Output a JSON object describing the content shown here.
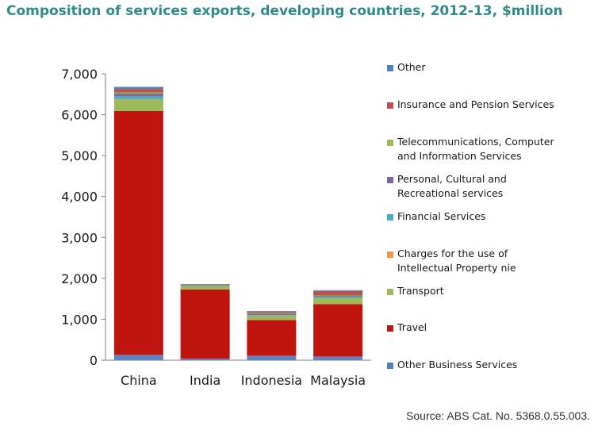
{
  "title": "Composition of services exports, developing countries, 2012-13, $million",
  "source": "Source: ABS Cat. No. 5368.0.55.003.",
  "chart_data": {
    "type": "bar",
    "stacked": true,
    "categories": [
      "China",
      "India",
      "Indonesia",
      "Malaysia"
    ],
    "ylim": [
      0,
      7000
    ],
    "yticks": [
      0,
      1000,
      2000,
      3000,
      4000,
      5000,
      6000,
      7000
    ],
    "ytick_labels": [
      "0",
      "1,000",
      "2,000",
      "3,000",
      "4,000",
      "5,000",
      "6,000",
      "7,000"
    ],
    "grid": false,
    "legend_position": "right",
    "series": [
      {
        "name": "Other Business Services",
        "color": "#5b83c6",
        "values": [
          130,
          40,
          110,
          90
        ]
      },
      {
        "name": "Travel",
        "color": "#c0140f",
        "values": [
          5960,
          1690,
          870,
          1280
        ]
      },
      {
        "name": "Transport",
        "color": "#9bbb59",
        "values": [
          280,
          70,
          110,
          150
        ]
      },
      {
        "name": "Charges for the use of Intellectual Property nie",
        "color": "#f59d56",
        "values": [
          10,
          0,
          0,
          0
        ]
      },
      {
        "name": "Financial Services",
        "color": "#4bacc6",
        "values": [
          70,
          10,
          10,
          20
        ]
      },
      {
        "name": "Personal, Cultural and Recreational services",
        "color": "#8064a2",
        "values": [
          60,
          10,
          30,
          20
        ]
      },
      {
        "name": "Telecommunications, Computer and Information Services",
        "color": "#7ea046",
        "values": [
          40,
          20,
          20,
          30
        ]
      },
      {
        "name": "Insurance and Pension Services",
        "color": "#c0504d",
        "values": [
          80,
          10,
          30,
          100
        ]
      },
      {
        "name": "Other",
        "color": "#4f81bd",
        "values": [
          50,
          10,
          20,
          20
        ]
      }
    ]
  },
  "legend": [
    {
      "lines": [
        "Other"
      ],
      "color": "#4f81bd"
    },
    {
      "lines": [
        "Insurance and Pension Services"
      ],
      "color": "#c0504d"
    },
    {
      "lines": [
        "Telecommunications, Computer",
        "and Information Services"
      ],
      "color": "#9bbb59"
    },
    {
      "lines": [
        "Personal, Cultural and",
        "Recreational services"
      ],
      "color": "#8064a2"
    },
    {
      "lines": [
        "Financial Services"
      ],
      "color": "#4bacc6"
    },
    {
      "lines": [
        "Charges for the use of",
        "Intellectual Property nie"
      ],
      "color": "#f79646"
    },
    {
      "lines": [
        "Transport"
      ],
      "color": "#9bbb59"
    },
    {
      "lines": [
        "Travel"
      ],
      "color": "#c0140f"
    },
    {
      "lines": [
        "Other Business Services"
      ],
      "color": "#4f81bd"
    }
  ]
}
